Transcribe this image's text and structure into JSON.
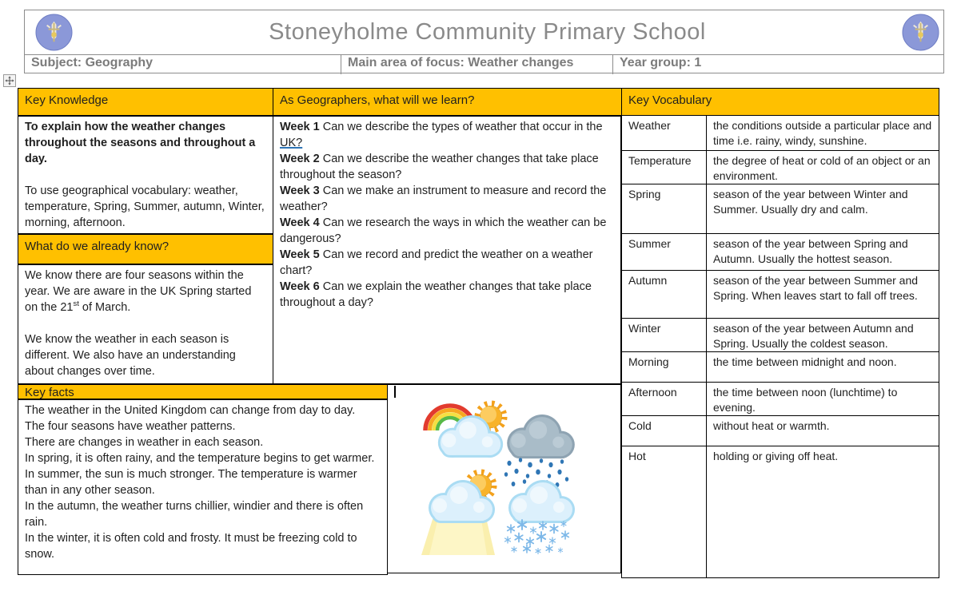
{
  "header": {
    "title": "Stoneyholme Community Primary School",
    "logo_name": "school-crest-badge",
    "subject_label": "Subject: Geography",
    "focus_label": "Main area of focus: Weather changes",
    "year_label": "Year group: 1"
  },
  "key_knowledge": {
    "header": "Key Knowledge",
    "aim_bold": "To explain how the weather changes throughout the seasons and throughout a day.",
    "vocab_aim": "To use geographical vocabulary: weather, temperature, Spring, Summer, autumn, Winter, morning, afternoon."
  },
  "already_know": {
    "header": "What do we already know?",
    "para1_pre": "We know there are four seasons within the year. We are aware in the UK Spring started on the 21",
    "para1_sup": "st",
    "para1_post": " of March.",
    "para2": "We know the weather in each season is different. We also have an understanding about changes over time."
  },
  "learn": {
    "header": "As Geographers, what will we learn?",
    "weeks": [
      {
        "label": "Week 1",
        "text": "Can we describe the types of weather that occur in the ",
        "underlined": "UK?"
      },
      {
        "label": "Week 2",
        "text": "Can we describe the weather changes that take place throughout the season?"
      },
      {
        "label": "Week 3",
        "text": "Can we make an instrument to measure and record the weather?"
      },
      {
        "label": "Week 4",
        "text": "Can we research the ways in which the weather can be dangerous?"
      },
      {
        "label": "Week 5",
        "text": "Can we record and predict the weather on a weather chart?"
      },
      {
        "label": "Week 6",
        "text": "Can we explain the weather changes that take place throughout a day?"
      }
    ]
  },
  "key_facts": {
    "header": "Key facts",
    "facts": [
      "The weather in the United Kingdom can change from day to day.",
      "The four seasons have weather patterns.",
      "There are changes in weather in each season.",
      "In spring, it is often rainy, and the temperature begins to get warmer.",
      "In summer, the sun is much stronger. The temperature is warmer than in any other season.",
      "In the autumn, the weather turns chillier, windier and there is often rain.",
      "In the winter, it is often cold and frosty. It must be freezing cold to snow."
    ]
  },
  "vocabulary": {
    "header": "Key Vocabulary",
    "entries": [
      {
        "term": "Weather",
        "definition": "the conditions outside a particular place and time i.e. rainy, windy, sunshine."
      },
      {
        "term": "Temperature",
        "definition": "the degree of heat or cold of an object or an environment."
      },
      {
        "term": "Spring",
        "definition": "season of the year between Winter and Summer. Usually dry and calm."
      },
      {
        "term": "Summer",
        "definition": "season of the year between Spring and Autumn. Usually the hottest season."
      },
      {
        "term": "Autumn",
        "definition": "season of the year between Summer and Spring. When leaves start to fall off trees."
      },
      {
        "term": "Winter",
        "definition": "season of the year between Autumn and Spring. Usually the coldest season."
      },
      {
        "term": "Morning",
        "definition": "the time between midnight and noon."
      },
      {
        "term": "Afternoon",
        "definition": "the time between noon (lunchtime) to evening."
      },
      {
        "term": "Cold",
        "definition": "without heat or warmth."
      },
      {
        "term": "Hot",
        "definition": "holding or giving off heat."
      }
    ]
  },
  "images": {
    "weather_icons": [
      "rainbow-sun-cloud-icon",
      "rain-cloud-icon",
      "sun-cloud-sunshine-icon",
      "snow-cloud-icon"
    ]
  },
  "colors": {
    "accent_orange": "#FFC000",
    "title_gray": "#8A8A8A",
    "subject_gray": "#7B7B7B",
    "link_underline_blue": "#2E74B5",
    "logo_blue": "#8B98D8"
  }
}
